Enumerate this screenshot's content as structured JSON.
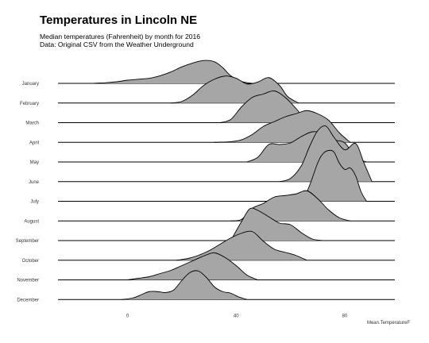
{
  "header": {
    "title": "Temperatures in Lincoln NE",
    "subtitle_1": "Median temperatures (Fahrenheit) by month for 2016",
    "subtitle_2": "Data: Original CSV from the Weather Underground"
  },
  "colors": {
    "fill": "#a6a6a6",
    "line": "#000000",
    "background": "#ffffff"
  },
  "chart_data": {
    "type": "area",
    "subtype": "ridgeline",
    "title": "Temperatures in Lincoln NE",
    "subtitle": "Median temperatures (Fahrenheit) by month for 2016",
    "xlabel": "Mean.TemperatureF",
    "ylabel": "",
    "xlim": [
      -20,
      100
    ],
    "x_ticks": [
      0,
      40,
      80
    ],
    "grid": false,
    "legend": "none",
    "categories": [
      "January",
      "February",
      "March",
      "April",
      "May",
      "June",
      "July",
      "August",
      "September",
      "October",
      "November",
      "December"
    ],
    "series": [
      {
        "name": "January",
        "x": [
          -13,
          -8,
          -4,
          0,
          4,
          8,
          12,
          16,
          20,
          24,
          28,
          32,
          35,
          38,
          42,
          46
        ],
        "density": [
          0,
          0.02,
          0.05,
          0.1,
          0.13,
          0.16,
          0.24,
          0.36,
          0.52,
          0.64,
          0.72,
          0.68,
          0.5,
          0.24,
          0.06,
          0
        ]
      },
      {
        "name": "February",
        "x": [
          16,
          20,
          24,
          28,
          32,
          36,
          40,
          44,
          48,
          52,
          56,
          59,
          63
        ],
        "density": [
          0,
          0.05,
          0.25,
          0.55,
          0.75,
          0.85,
          0.78,
          0.6,
          0.66,
          0.8,
          0.55,
          0.2,
          0
        ]
      },
      {
        "name": "March",
        "x": [
          34,
          38,
          42,
          46,
          50,
          54,
          58,
          62,
          65,
          68
        ],
        "density": [
          0,
          0.1,
          0.5,
          0.8,
          0.9,
          1.0,
          0.8,
          0.45,
          0.15,
          0
        ]
      },
      {
        "name": "April",
        "x": [
          32,
          38,
          42,
          46,
          50,
          54,
          58,
          62,
          66,
          70,
          74,
          78,
          82
        ],
        "density": [
          0,
          0.02,
          0.08,
          0.25,
          0.5,
          0.65,
          0.8,
          0.9,
          1.0,
          0.9,
          0.7,
          0.3,
          0
        ]
      },
      {
        "name": "May",
        "x": [
          44,
          48,
          52,
          56,
          60,
          64,
          68,
          72,
          76,
          80,
          84,
          88
        ],
        "density": [
          0,
          0.15,
          0.55,
          0.55,
          0.6,
          0.8,
          0.95,
          0.9,
          0.7,
          0.6,
          0.15,
          0
        ]
      },
      {
        "name": "June",
        "x": [
          56,
          60,
          64,
          67,
          70,
          73,
          76,
          80,
          84,
          87,
          90
        ],
        "density": [
          0,
          0.1,
          0.5,
          1.1,
          1.6,
          1.75,
          1.4,
          1.0,
          1.2,
          0.6,
          0
        ]
      },
      {
        "name": "July",
        "x": [
          62,
          66,
          70,
          72,
          74,
          76,
          78,
          80,
          82,
          84,
          86,
          88
        ],
        "density": [
          0,
          0.3,
          1.2,
          1.5,
          1.6,
          1.55,
          1.2,
          1.0,
          1.05,
          0.8,
          0.3,
          0
        ]
      },
      {
        "name": "August",
        "x": [
          38,
          42,
          46,
          50,
          54,
          58,
          62,
          66,
          70,
          74,
          78,
          82
        ],
        "density": [
          0,
          0.05,
          0.4,
          0.55,
          0.75,
          0.8,
          0.85,
          0.95,
          0.7,
          0.35,
          0.1,
          0
        ]
      },
      {
        "name": "September",
        "x": [
          38,
          42,
          45,
          48,
          52,
          56,
          60,
          64,
          68,
          72
        ],
        "density": [
          0,
          0.6,
          1.0,
          0.95,
          0.75,
          0.55,
          0.5,
          0.25,
          0.05,
          0
        ]
      },
      {
        "name": "October",
        "x": [
          18,
          22,
          26,
          30,
          34,
          38,
          42,
          46,
          50,
          54,
          58,
          62,
          66
        ],
        "density": [
          0,
          0.05,
          0.15,
          0.3,
          0.5,
          0.7,
          0.85,
          0.9,
          0.6,
          0.35,
          0.25,
          0.15,
          0
        ]
      },
      {
        "name": "November",
        "x": [
          0,
          4,
          8,
          12,
          16,
          20,
          24,
          28,
          32,
          36,
          40,
          44,
          48
        ],
        "density": [
          0,
          0.05,
          0.1,
          0.2,
          0.3,
          0.45,
          0.6,
          0.75,
          0.85,
          0.7,
          0.45,
          0.15,
          0
        ]
      },
      {
        "name": "December",
        "x": [
          -2,
          2,
          5,
          8,
          11,
          14,
          17,
          20,
          23,
          26,
          29,
          32,
          35,
          38,
          41,
          44
        ],
        "density": [
          0,
          0.05,
          0.15,
          0.25,
          0.25,
          0.22,
          0.3,
          0.6,
          0.85,
          0.9,
          0.7,
          0.4,
          0.25,
          0.2,
          0.08,
          0
        ]
      }
    ]
  }
}
